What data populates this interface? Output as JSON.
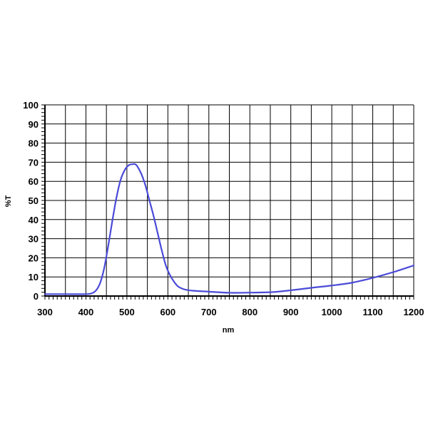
{
  "chart_data": {
    "type": "line",
    "xlabel": "nm",
    "ylabel": "%T",
    "xlim": [
      300,
      1200
    ],
    "ylim": [
      0,
      100
    ],
    "x_ticks": [
      300,
      400,
      500,
      600,
      700,
      800,
      900,
      1000,
      1100,
      1200
    ],
    "y_ticks": [
      0,
      10,
      20,
      30,
      40,
      50,
      60,
      70,
      80,
      90,
      100
    ],
    "grid": true,
    "line_color": "#4b4bd8",
    "series": [
      {
        "x": [
          300,
          350,
          400,
          415,
          425,
          435,
          445,
          455,
          465,
          475,
          485,
          495,
          505,
          515,
          520,
          525,
          535,
          545,
          555,
          565,
          575,
          585,
          595,
          605,
          615,
          625,
          640,
          660,
          700,
          750,
          800,
          850,
          900,
          950,
          1000,
          1050,
          1100,
          1150,
          1200
        ],
        "y": [
          1,
          1,
          1,
          1.5,
          3,
          7,
          15,
          27,
          40,
          52,
          61,
          66,
          68.5,
          69,
          69,
          68,
          64,
          58,
          50,
          42,
          33,
          24,
          16,
          11,
          7.5,
          5,
          3.5,
          2.8,
          2.3,
          1.7,
          1.8,
          2,
          3,
          4.3,
          5.5,
          7,
          9.5,
          12.5,
          16
        ]
      }
    ]
  }
}
